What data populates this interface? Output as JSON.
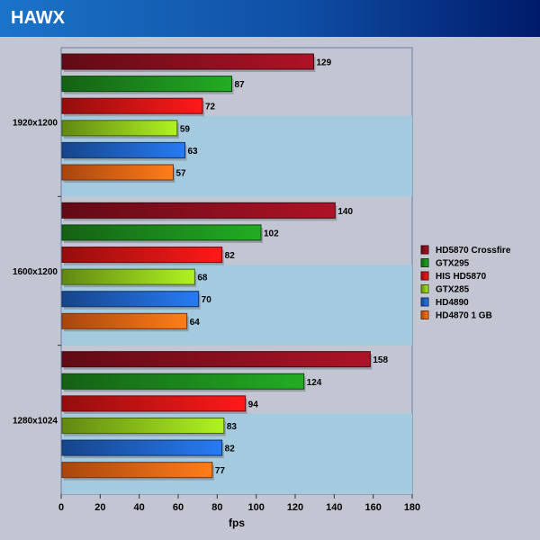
{
  "title": "HAWX",
  "chart_data": {
    "type": "bar",
    "orientation": "horizontal",
    "xlabel": "fps",
    "ylabel": "",
    "xlim": [
      0,
      180
    ],
    "xticks": [
      0,
      20,
      40,
      60,
      80,
      100,
      120,
      140,
      160,
      180
    ],
    "grid": false,
    "legend_position": "right",
    "groups": [
      "1920x1200",
      "1600x1200",
      "1280x1024"
    ],
    "series": [
      {
        "name": "HD5870 Crossfire",
        "color": "#8b0f1e",
        "values": [
          129,
          140,
          158
        ]
      },
      {
        "name": "GTX295",
        "color": "#1c8a1c",
        "values": [
          87,
          102,
          124
        ]
      },
      {
        "name": "HIS HD5870",
        "color": "#d41414",
        "values": [
          72,
          82,
          94
        ]
      },
      {
        "name": "GTX285",
        "color": "#8cc21a",
        "values": [
          59,
          68,
          83
        ]
      },
      {
        "name": "HD4890",
        "color": "#1f62c4",
        "values": [
          63,
          70,
          82
        ]
      },
      {
        "name": "HD4870 1 GB",
        "color": "#f06414",
        "values": [
          57,
          64,
          77
        ]
      }
    ]
  }
}
